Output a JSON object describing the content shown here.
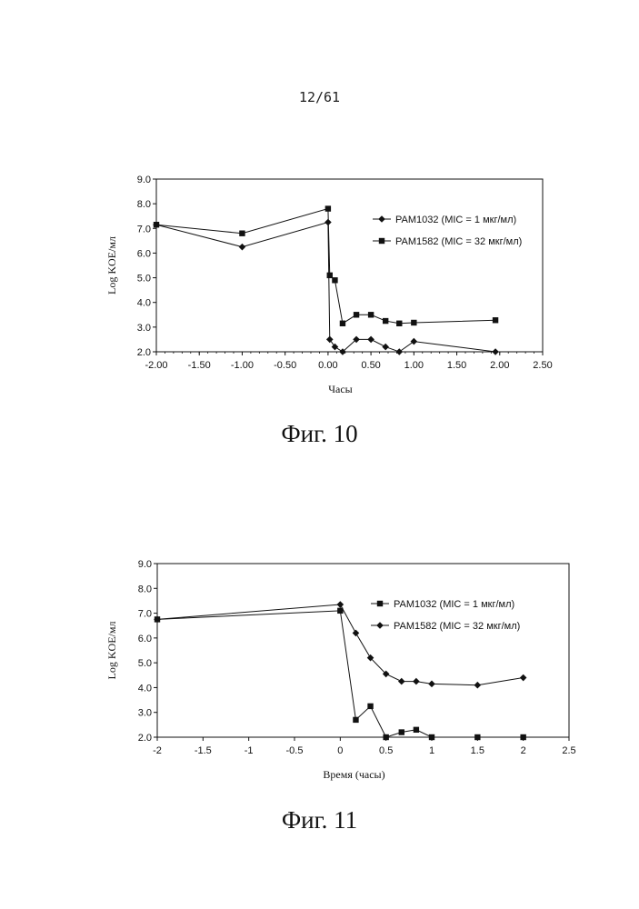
{
  "page_number": "12/61",
  "figures": [
    {
      "caption": "Фиг. 10"
    },
    {
      "caption": "Фиг. 11"
    }
  ],
  "chart_data": [
    {
      "type": "line",
      "xlabel": "Часы",
      "ylabel": "Log KOE/мл",
      "xlim": [
        -2.0,
        2.5
      ],
      "ylim": [
        2.0,
        9.0
      ],
      "x_ticks": [
        "-2.00",
        "-1.50",
        "-1.00",
        "-0.50",
        "0.00",
        "0.50",
        "1.00",
        "1.50",
        "2.00",
        "2.50"
      ],
      "y_ticks": [
        "2.0",
        "3.0",
        "4.0",
        "5.0",
        "6.0",
        "7.0",
        "8.0",
        "9.0"
      ],
      "x_tick_values": [
        -2.0,
        -1.5,
        -1.0,
        -0.5,
        0.0,
        0.5,
        1.0,
        1.5,
        2.0,
        2.5
      ],
      "y_tick_values": [
        2,
        3,
        4,
        5,
        6,
        7,
        8,
        9
      ],
      "grid": false,
      "legend_position": "right",
      "series": [
        {
          "name": "PAM1032 (MIC = 1 мкг/мл)",
          "marker": "diamond",
          "x": [
            -2.0,
            -1.0,
            0.0,
            0.02,
            0.08,
            0.17,
            0.33,
            0.5,
            0.67,
            0.83,
            1.0,
            1.95
          ],
          "y": [
            7.15,
            6.25,
            7.25,
            2.5,
            2.2,
            2.0,
            2.5,
            2.5,
            2.2,
            2.0,
            2.42,
            2.0
          ]
        },
        {
          "name": "PAM1582 (MIC = 32 мкг/мл)",
          "marker": "square",
          "x": [
            -2.0,
            -1.0,
            0.0,
            0.02,
            0.08,
            0.17,
            0.33,
            0.5,
            0.67,
            0.83,
            1.0,
            1.95
          ],
          "y": [
            7.15,
            6.8,
            7.8,
            5.1,
            4.9,
            3.15,
            3.5,
            3.5,
            3.25,
            3.15,
            3.18,
            3.28
          ]
        }
      ]
    },
    {
      "type": "line",
      "xlabel": "Время (часы)",
      "ylabel": "Log KOE/мл",
      "xlim": [
        -2,
        2.5
      ],
      "ylim": [
        2.0,
        9.0
      ],
      "x_ticks": [
        "-2",
        "-1.5",
        "-1",
        "-0.5",
        "0",
        "0.5",
        "1",
        "1.5",
        "2",
        "2.5"
      ],
      "y_ticks": [
        "2.0",
        "3.0",
        "4.0",
        "5.0",
        "6.0",
        "7.0",
        "8.0",
        "9.0"
      ],
      "x_tick_values": [
        -2,
        -1.5,
        -1,
        -0.5,
        0,
        0.5,
        1,
        1.5,
        2,
        2.5
      ],
      "y_tick_values": [
        2,
        3,
        4,
        5,
        6,
        7,
        8,
        9
      ],
      "grid": false,
      "legend_position": "right",
      "series": [
        {
          "name": "PAM1032 (MIC = 1 мкг/мл)",
          "marker": "square",
          "x": [
            -2,
            0,
            0.17,
            0.33,
            0.5,
            0.67,
            0.83,
            1.0,
            1.5,
            2.0
          ],
          "y": [
            6.75,
            7.1,
            2.7,
            3.25,
            2.0,
            2.2,
            2.3,
            2.0,
            2.0,
            2.0
          ]
        },
        {
          "name": "PAM1582 (MIC = 32 мкг/мл)",
          "marker": "diamond",
          "x": [
            -2,
            0,
            0.17,
            0.33,
            0.5,
            0.67,
            0.83,
            1.0,
            1.5,
            2.0
          ],
          "y": [
            6.75,
            7.35,
            6.2,
            5.2,
            4.55,
            4.25,
            4.25,
            4.15,
            4.1,
            4.4
          ]
        }
      ]
    }
  ]
}
